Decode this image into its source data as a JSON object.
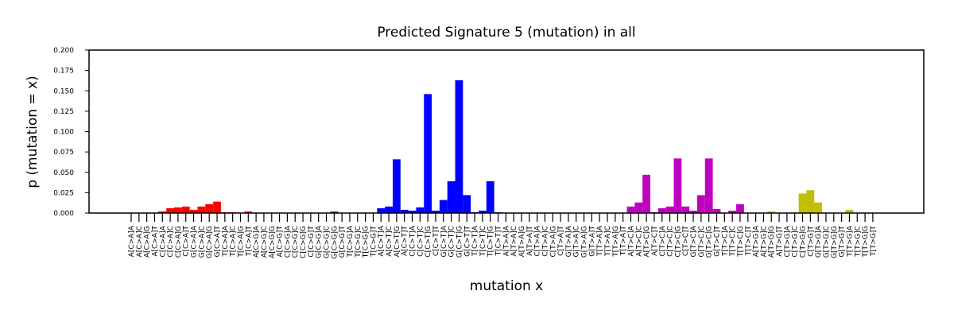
{
  "chart_data": {
    "type": "bar",
    "title": "Predicted Signature 5 (mutation) in all",
    "xlabel": "mutation x",
    "ylabel": "p (mutation = x)",
    "ylim": [
      0,
      0.2
    ],
    "yticks": [
      "0.000",
      "0.025",
      "0.050",
      "0.075",
      "0.100",
      "0.125",
      "0.150",
      "0.175",
      "0.200"
    ],
    "grid": false,
    "categories": [
      "A[C>A]A",
      "A[C>A]C",
      "A[C>A]G",
      "A[C>A]T",
      "C[C>A]A",
      "C[C>A]C",
      "C[C>A]G",
      "C[C>A]T",
      "G[C>A]A",
      "G[C>A]C",
      "G[C>A]G",
      "G[C>A]T",
      "T[C>A]A",
      "T[C>A]C",
      "T[C>A]G",
      "T[C>A]T",
      "A[C>G]A",
      "A[C>G]C",
      "A[C>G]G",
      "A[C>G]T",
      "C[C>G]A",
      "C[C>G]C",
      "C[C>G]G",
      "C[C>G]T",
      "G[C>G]A",
      "G[C>G]C",
      "G[C>G]G",
      "G[C>G]T",
      "T[C>G]A",
      "T[C>G]C",
      "T[C>G]G",
      "T[C>G]T",
      "A[C>T]A",
      "A[C>T]C",
      "A[C>T]G",
      "A[C>T]T",
      "C[C>T]A",
      "C[C>T]C",
      "C[C>T]G",
      "C[C>T]T",
      "G[C>T]A",
      "G[C>T]C",
      "G[C>T]G",
      "G[C>T]T",
      "T[C>T]A",
      "T[C>T]C",
      "T[C>T]G",
      "T[C>T]T",
      "A[T>A]A",
      "A[T>A]C",
      "A[T>A]G",
      "A[T>A]T",
      "C[T>A]A",
      "C[T>A]C",
      "C[T>A]G",
      "C[T>A]T",
      "G[T>A]A",
      "G[T>A]C",
      "G[T>A]G",
      "G[T>A]T",
      "T[T>A]A",
      "T[T>A]C",
      "T[T>A]G",
      "T[T>A]T",
      "A[T>C]A",
      "A[T>C]C",
      "A[T>C]G",
      "A[T>C]T",
      "C[T>C]A",
      "C[T>C]C",
      "C[T>C]G",
      "C[T>C]T",
      "G[T>C]A",
      "G[T>C]C",
      "G[T>C]G",
      "G[T>C]T",
      "T[T>C]A",
      "T[T>C]C",
      "T[T>C]G",
      "T[T>C]T",
      "A[T>G]A",
      "A[T>G]C",
      "A[T>G]G",
      "A[T>G]T",
      "C[T>G]A",
      "C[T>G]C",
      "C[T>G]G",
      "C[T>G]T",
      "G[T>G]A",
      "G[T>G]C",
      "G[T>G]G",
      "G[T>G]T",
      "T[T>G]A",
      "T[T>G]C",
      "T[T>G]G",
      "T[T>G]T"
    ],
    "values": [
      0.0,
      0.0,
      0.0,
      0.0005,
      0.002,
      0.006,
      0.007,
      0.008,
      0.004,
      0.008,
      0.011,
      0.014,
      0.001,
      0.001,
      0.0005,
      0.002,
      0.0005,
      0.0,
      0.0,
      0.0,
      0.0,
      0.0,
      0.0,
      0.0,
      0.0,
      0.0,
      0.002,
      0.0,
      0.0,
      0.0,
      0.0,
      0.0,
      0.006,
      0.008,
      0.066,
      0.004,
      0.003,
      0.007,
      0.146,
      0.003,
      0.016,
      0.039,
      0.163,
      0.022,
      0.001,
      0.003,
      0.039,
      0.001,
      0.0005,
      0.0,
      0.0,
      0.0,
      0.0,
      0.0,
      0.0005,
      0.0,
      0.0,
      0.0,
      0.0,
      0.0,
      0.0,
      0.0,
      0.0,
      0.0,
      0.008,
      0.013,
      0.047,
      0.001,
      0.006,
      0.008,
      0.067,
      0.008,
      0.003,
      0.022,
      0.067,
      0.005,
      0.0,
      0.003,
      0.011,
      0.0,
      0.0,
      0.0,
      0.002,
      0.0,
      0.0,
      0.0,
      0.024,
      0.028,
      0.013,
      0.0,
      0.0,
      0.0,
      0.004,
      0.0,
      0.0,
      0.0
    ],
    "group_colors": {
      "C>A": "#ff0000",
      "C>G": "#008000",
      "C>T": "#0000ff",
      "T>A": "#00bfbf",
      "T>C": "#bf00bf",
      "T>G": "#bfbf00"
    }
  }
}
